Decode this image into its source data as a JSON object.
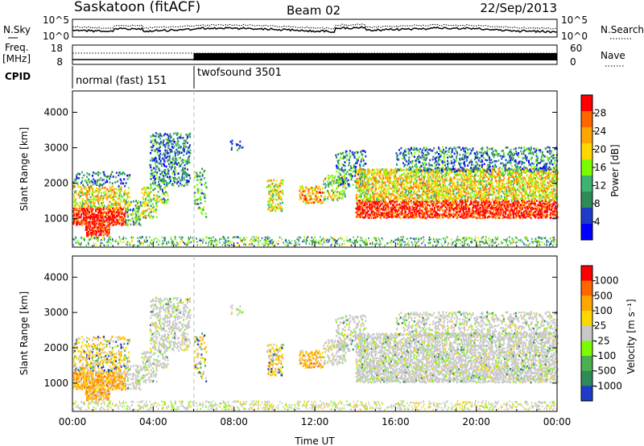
{
  "header": {
    "station": "Saskatoon (fitACF)",
    "beam": "Beam 02",
    "date": "22/Sep/2013"
  },
  "colors": {
    "power_scale": [
      "#0000ff",
      "#1e3cc8",
      "#2e8b57",
      "#3cb371",
      "#7cfc00",
      "#ffd700",
      "#ffa500",
      "#ff6600",
      "#ff0000"
    ],
    "velocity_scale": [
      "#1e3cc8",
      "#2e8b57",
      "#4caf50",
      "#7cfc00",
      "#c8c8c8",
      "#ffd700",
      "#ffa500",
      "#ff6600",
      "#ff0000"
    ]
  },
  "chart_data": [
    {
      "type": "line",
      "name": "noise-panel",
      "left_label": "N.Sky",
      "right_label": "N.Search",
      "left_ticks": [
        "10^5",
        "10^0"
      ],
      "right_ticks": [
        "10^5",
        "10^0"
      ]
    },
    {
      "type": "line",
      "name": "frequency-panel",
      "left_label_line1": "Freq.",
      "left_label_line2": "[MHz]",
      "right_label": "Nave",
      "left_ticks": [
        "18",
        "8"
      ],
      "right_ticks": [
        "60",
        "0"
      ]
    },
    {
      "type": "table",
      "name": "cpid-row",
      "label": "CPID",
      "programs": [
        {
          "name": "normal (fast) 151",
          "start_hour": 0,
          "end_hour": 6
        },
        {
          "name": "twofsound 3501",
          "start_hour": 6,
          "end_hour": 24
        }
      ]
    },
    {
      "type": "heatmap",
      "name": "power-panel",
      "ylabel": "Slant Range [km]",
      "yticks": [
        1000,
        2000,
        3000,
        4000
      ],
      "ylim": [
        200,
        4600
      ],
      "colorbar_label": "Power [dB]",
      "colorbar_ticks": [
        "28",
        "24",
        "20",
        "16",
        "12",
        "8",
        "4"
      ]
    },
    {
      "type": "heatmap",
      "name": "velocity-panel",
      "ylabel": "Slant Range [km]",
      "yticks": [
        1000,
        2000,
        3000,
        4000
      ],
      "ylim": [
        200,
        4600
      ],
      "colorbar_label": "Velocity [m s⁻¹]",
      "colorbar_ticks": [
        "1000",
        "500",
        "100",
        "25",
        "-25",
        "-100",
        "-500",
        "-1000"
      ]
    }
  ],
  "xaxis": {
    "label": "Time UT",
    "ticks": [
      "00:00",
      "04:00",
      "08:00",
      "12:00",
      "16:00",
      "20:00",
      "00:00"
    ]
  }
}
